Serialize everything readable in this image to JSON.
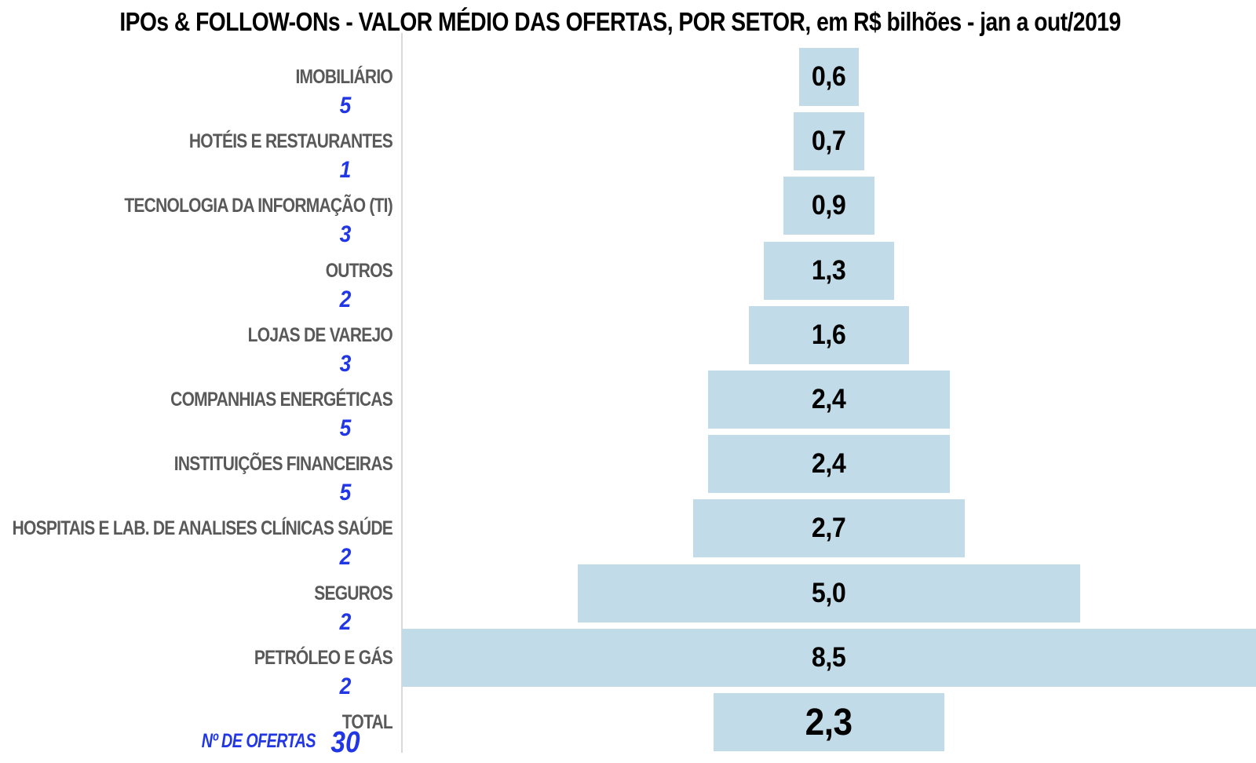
{
  "title": "IPOs & FOLLOW-ONs - VALOR MÉDIO DAS OFERTAS, POR SETOR, em R$ bilhões - jan a out/2019",
  "footer_label": "Nº DE OFERTAS",
  "colors": {
    "background": "#ffffff",
    "bar_fill": "#c2dbe8",
    "axis_line": "#d9d9d9",
    "category_text": "#595959",
    "count_text": "#2136e4",
    "value_text": "#000000",
    "title_text": "#000000"
  },
  "chart_data": {
    "type": "bar",
    "subtype": "centered-horizontal-funnel",
    "title": "IPOs & FOLLOW-ONs - VALOR MÉDIO DAS OFERTAS, POR SETOR, em R$ bilhões - jan a out/2019",
    "unit": "R$ bilhões",
    "period": "jan a out/2019",
    "value_axis_label": "Nº DE OFERTAS",
    "grid": false,
    "legend": false,
    "value_range_shown": [
      0,
      8.5
    ],
    "rows": [
      {
        "label": "IMOBILIÁRIO",
        "offers": 5,
        "value": 0.6,
        "value_label": "0,6",
        "count_label": "5"
      },
      {
        "label": "HOTÉIS E RESTAURANTES",
        "offers": 1,
        "value": 0.7,
        "value_label": "0,7",
        "count_label": "1"
      },
      {
        "label": "TECNOLOGIA DA INFORMAÇÃO (TI)",
        "offers": 3,
        "value": 0.9,
        "value_label": "0,9",
        "count_label": "3"
      },
      {
        "label": "OUTROS",
        "offers": 2,
        "value": 1.3,
        "value_label": "1,3",
        "count_label": "2"
      },
      {
        "label": "LOJAS DE VAREJO",
        "offers": 3,
        "value": 1.6,
        "value_label": "1,6",
        "count_label": "3"
      },
      {
        "label": "COMPANHIAS ENERGÉTICAS",
        "offers": 5,
        "value": 2.4,
        "value_label": "2,4",
        "count_label": "5"
      },
      {
        "label": "INSTITUIÇÕES FINANCEIRAS",
        "offers": 5,
        "value": 2.4,
        "value_label": "2,4",
        "count_label": "5"
      },
      {
        "label": "HOSPITAIS E LAB. DE ANALISES CLÍNICAS SAÚDE",
        "offers": 2,
        "value": 2.7,
        "value_label": "2,7",
        "count_label": "2"
      },
      {
        "label": "SEGUROS",
        "offers": 2,
        "value": 5.0,
        "value_label": "5,0",
        "count_label": "2"
      },
      {
        "label": "PETRÓLEO E GÁS",
        "offers": 2,
        "value": 8.5,
        "value_label": "8,5",
        "count_label": "2"
      },
      {
        "label": "TOTAL",
        "offers": 30,
        "value": 2.3,
        "value_label": "2,3",
        "count_label": "30"
      }
    ]
  }
}
